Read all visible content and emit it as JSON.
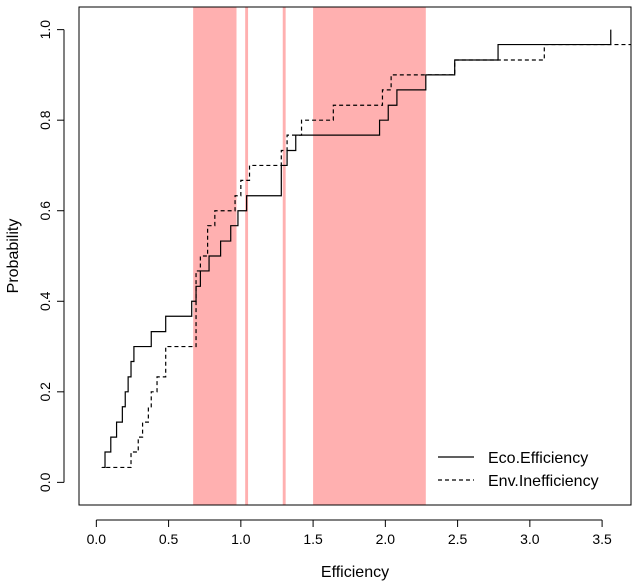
{
  "chart_data": {
    "type": "line",
    "xlabel": "Efficiency",
    "ylabel": "Probability",
    "xlim": [
      -0.12,
      3.7
    ],
    "ylim": [
      -0.05,
      1.05
    ],
    "xticks": [
      0.0,
      0.5,
      1.0,
      1.5,
      2.0,
      2.5,
      3.0,
      3.5
    ],
    "xtick_labels": [
      "0.0",
      "0.5",
      "1.0",
      "1.5",
      "2.0",
      "2.5",
      "3.0",
      "3.5"
    ],
    "yticks": [
      0.0,
      0.2,
      0.4,
      0.6,
      0.8,
      1.0
    ],
    "ytick_labels": [
      "0.0",
      "0.2",
      "0.4",
      "0.6",
      "0.8",
      "1.0"
    ],
    "shaded_bands": [
      {
        "from": 0.67,
        "to": 0.97
      },
      {
        "from": 1.03,
        "to": 1.05
      },
      {
        "from": 1.29,
        "to": 1.31
      },
      {
        "from": 1.5,
        "to": 2.28
      }
    ],
    "band_color": "#ffb0b0",
    "legend_position": "bottom-right",
    "series": [
      {
        "name": "Eco.Efficiency",
        "style": "solid",
        "x": [
          0.04,
          0.06,
          0.1,
          0.14,
          0.18,
          0.2,
          0.22,
          0.24,
          0.26,
          0.38,
          0.48,
          0.66,
          0.69,
          0.72,
          0.78,
          0.86,
          0.93,
          0.98,
          1.04,
          1.28,
          1.32,
          1.38,
          1.96,
          2.02,
          2.08,
          2.28,
          2.48,
          2.78,
          3.56
        ],
        "y": [
          0.033,
          0.067,
          0.1,
          0.133,
          0.167,
          0.2,
          0.233,
          0.267,
          0.3,
          0.333,
          0.367,
          0.4,
          0.433,
          0.467,
          0.5,
          0.533,
          0.567,
          0.6,
          0.633,
          0.7,
          0.733,
          0.767,
          0.8,
          0.833,
          0.867,
          0.9,
          0.933,
          0.967,
          1.0
        ],
        "y_start": 0.0333,
        "x_end": 3.56
      },
      {
        "name": "Env.Inefficiency",
        "style": "dashed",
        "x": [
          0.07,
          0.24,
          0.29,
          0.32,
          0.36,
          0.38,
          0.42,
          0.48,
          0.69,
          0.72,
          0.77,
          0.82,
          0.96,
          1.0,
          1.06,
          1.28,
          1.32,
          1.42,
          1.64,
          1.98,
          2.04,
          2.11,
          2.48,
          2.78,
          3.1,
          3.6
        ],
        "y": [
          0.033,
          0.067,
          0.1,
          0.133,
          0.167,
          0.2,
          0.233,
          0.3,
          0.467,
          0.5,
          0.567,
          0.6,
          0.633,
          0.667,
          0.7,
          0.733,
          0.767,
          0.8,
          0.833,
          0.867,
          0.9,
          0.9,
          0.933,
          0.933,
          0.967,
          0.967
        ],
        "y_start": 0.0333,
        "x_end": 3.7
      }
    ]
  }
}
